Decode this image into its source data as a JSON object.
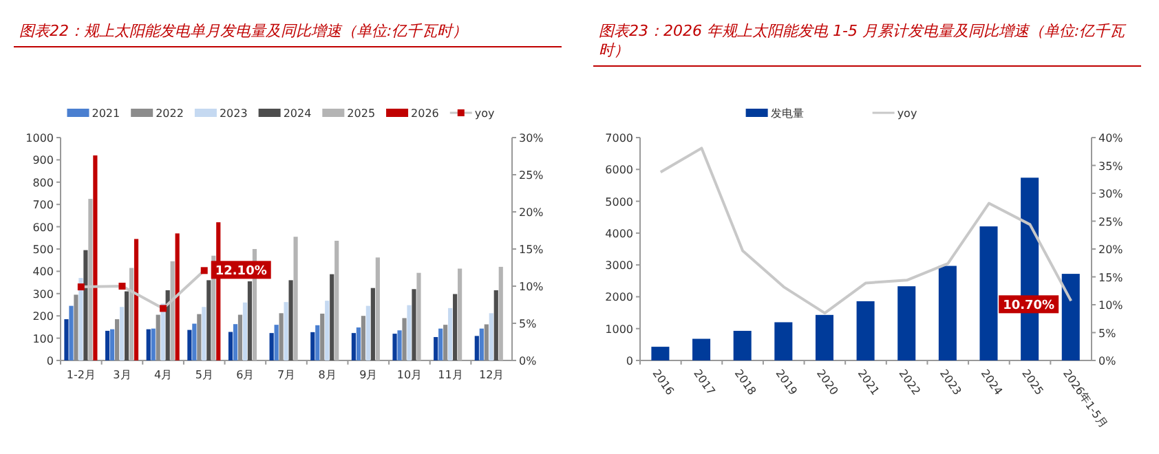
{
  "chart_data": [
    {
      "type": "bar",
      "title": "图表22：规上太阳能发电单月发电量及同比增速（单位:亿千瓦时）",
      "categories": [
        "1-2月",
        "3月",
        "4月",
        "5月",
        "6月",
        "7月",
        "8月",
        "9月",
        "10月",
        "11月",
        "12月"
      ],
      "series": [
        {
          "color": "#0a3d9c",
          "values": [
            185,
            133,
            140,
            137,
            128,
            123,
            127,
            123,
            120,
            105,
            110
          ]
        },
        {
          "name": "2021",
          "color": "#4a7fd0",
          "values": [
            245,
            140,
            143,
            165,
            163,
            160,
            158,
            148,
            135,
            143,
            143
          ]
        },
        {
          "name": "2022",
          "color": "#8c8c8c",
          "values": [
            295,
            185,
            205,
            208,
            205,
            212,
            210,
            200,
            190,
            160,
            162
          ]
        },
        {
          "name": "2023",
          "color": "#c5d9f1",
          "values": [
            370,
            240,
            255,
            240,
            260,
            262,
            268,
            245,
            248,
            235,
            212
          ]
        },
        {
          "name": "2024",
          "color": "#4d4d4d",
          "values": [
            495,
            310,
            315,
            360,
            355,
            360,
            387,
            325,
            320,
            298,
            315
          ]
        },
        {
          "name": "2025",
          "color": "#b4b4b4",
          "values": [
            725,
            415,
            445,
            470,
            500,
            555,
            537,
            462,
            393,
            412,
            420
          ]
        },
        {
          "name": "2026",
          "color": "#c00000",
          "values": [
            920,
            545,
            570,
            620,
            null,
            null,
            null,
            null,
            null,
            null,
            null
          ]
        },
        {
          "name": "yoy",
          "type": "line",
          "axis": "y2",
          "color": "#c8c8c8",
          "marker": "square",
          "values": [
            9.9,
            10.0,
            7.0,
            12.1,
            null,
            null,
            null,
            null,
            null,
            null,
            null
          ],
          "value_labels": [
            null,
            null,
            null,
            "12.10%",
            null,
            null,
            null,
            null,
            null,
            null,
            null
          ]
        }
      ],
      "ylim": [
        0,
        1000
      ],
      "yticks": [
        0,
        100,
        200,
        300,
        400,
        500,
        600,
        700,
        800,
        900,
        1000
      ],
      "y2lim": [
        0,
        30
      ],
      "y2ticks": [
        {
          "value": 0,
          "label": "0%"
        },
        {
          "value": 5,
          "label": "5%"
        },
        {
          "value": 10,
          "label": "10%"
        },
        {
          "value": 15,
          "label": "15%"
        },
        {
          "value": 20,
          "label": "20%"
        },
        {
          "value": 25,
          "label": "25%"
        },
        {
          "value": 30,
          "label": "30%"
        }
      ],
      "legend": "top"
    },
    {
      "type": "bar",
      "title": "图表23：2026 年规上太阳能发电 1-5 月累计发电量及同比增速（单位:亿千瓦时）",
      "categories": [
        "2016",
        "2017",
        "2018",
        "2019",
        "2020",
        "2021",
        "2022",
        "2023",
        "2024",
        "2025",
        "2026年1-5月"
      ],
      "series": [
        {
          "name": "发电量",
          "color": "#003b9a",
          "values": [
            430,
            680,
            930,
            1200,
            1430,
            1860,
            2330,
            2970,
            4210,
            5740,
            2720
          ]
        },
        {
          "name": "yoy",
          "type": "line",
          "axis": "y2",
          "color": "#c8c8c8",
          "values": [
            33.8,
            38.1,
            19.7,
            13.2,
            8.5,
            13.9,
            14.4,
            17.4,
            28.2,
            24.4,
            10.7
          ],
          "value_labels": [
            null,
            null,
            null,
            null,
            null,
            null,
            null,
            null,
            null,
            null,
            "10.70%"
          ]
        }
      ],
      "ylim": [
        0,
        7000
      ],
      "yticks": [
        0,
        1000,
        2000,
        3000,
        4000,
        5000,
        6000,
        7000
      ],
      "y2lim": [
        0,
        40
      ],
      "y2ticks": [
        {
          "value": 0,
          "label": "0%"
        },
        {
          "value": 5,
          "label": "5%"
        },
        {
          "value": 10,
          "label": "10%"
        },
        {
          "value": 15,
          "label": "15%"
        },
        {
          "value": 20,
          "label": "20%"
        },
        {
          "value": 25,
          "label": "25%"
        },
        {
          "value": 30,
          "label": "30%"
        },
        {
          "value": 35,
          "label": "35%"
        },
        {
          "value": 40,
          "label": "40%"
        }
      ],
      "legend": "top"
    }
  ]
}
